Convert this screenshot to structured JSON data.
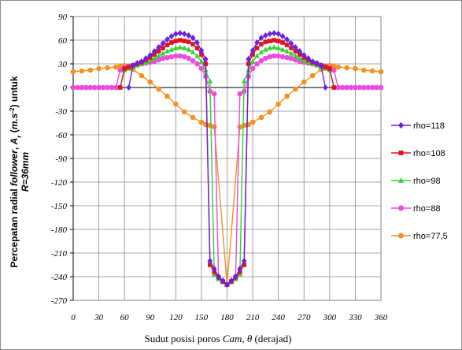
{
  "chart_data": {
    "type": "line",
    "title": "",
    "xlabel": {
      "prefix": "Sudut posisi poros ",
      "italic": "Cam",
      "sep": ", ",
      "theta": "θ",
      "suffix": " (derajad)"
    },
    "ylabel": {
      "line1_a": "Percepatan radial ",
      "line1_b": "follower",
      "line1_c": ", ",
      "line1_d": "A",
      "line1_e": "r",
      "line1_f": " (",
      "line1_g": "m.s",
      "line1_h": "-2",
      "line1_i": ") untuk",
      "line2": "R=36mm"
    },
    "xlim": [
      0,
      360
    ],
    "ylim": [
      -270,
      90
    ],
    "xticks": [
      0,
      30,
      60,
      90,
      120,
      150,
      180,
      210,
      240,
      270,
      300,
      330,
      360
    ],
    "yticks": [
      90,
      60,
      30,
      0,
      -30,
      -60,
      -90,
      -120,
      -150,
      -180,
      -210,
      -240,
      -270
    ],
    "grid": true,
    "legend_position": "right",
    "series": [
      {
        "name": "rho=118",
        "color": "#6a22e0",
        "marker": "diamond",
        "x": [
          65,
          70,
          75,
          80,
          85,
          90,
          95,
          100,
          105,
          110,
          115,
          120,
          125,
          130,
          135,
          140,
          145,
          150,
          155,
          160,
          165,
          170,
          175,
          180,
          185,
          190,
          195,
          200,
          205,
          210,
          215,
          220,
          225,
          230,
          235,
          240,
          245,
          250,
          255,
          260,
          265,
          270,
          275,
          280,
          285,
          290,
          295
        ],
        "y": [
          0,
          28,
          31,
          33,
          37,
          41,
          46,
          51,
          56,
          61,
          65,
          68,
          69,
          68,
          66,
          63,
          57,
          47,
          36,
          -220,
          -230,
          -240,
          -245,
          -250,
          -245,
          -240,
          -230,
          -220,
          36,
          47,
          57,
          63,
          66,
          68,
          69,
          68,
          65,
          61,
          56,
          51,
          46,
          41,
          37,
          33,
          31,
          28,
          0
        ]
      },
      {
        "name": "rho=108",
        "color": "#e0141e",
        "marker": "square",
        "x": [
          55,
          60,
          65,
          70,
          75,
          80,
          85,
          90,
          95,
          100,
          105,
          110,
          115,
          120,
          125,
          130,
          135,
          140,
          145,
          150,
          155,
          160,
          165,
          170,
          175,
          180,
          185,
          190,
          195,
          200,
          205,
          210,
          215,
          220,
          225,
          230,
          235,
          240,
          245,
          250,
          255,
          260,
          265,
          270,
          275,
          280,
          285,
          290,
          295,
          300,
          305
        ],
        "y": [
          0,
          24,
          26,
          28,
          30,
          32,
          35,
          38,
          42,
          46,
          50,
          54,
          57,
          59,
          60,
          59,
          58,
          55,
          50,
          42,
          30,
          -225,
          -234,
          -241,
          -246,
          -250,
          -246,
          -241,
          -234,
          -225,
          30,
          42,
          50,
          55,
          58,
          59,
          60,
          59,
          57,
          54,
          50,
          46,
          42,
          38,
          35,
          32,
          30,
          28,
          26,
          24,
          0
        ]
      },
      {
        "name": "rho=98",
        "color": "#2fd42f",
        "marker": "triangle",
        "x": [
          55,
          60,
          65,
          70,
          75,
          80,
          85,
          90,
          95,
          100,
          105,
          110,
          115,
          120,
          125,
          130,
          135,
          140,
          145,
          150,
          155,
          160,
          165,
          170,
          175,
          180,
          185,
          190,
          195,
          200,
          205,
          210,
          215,
          220,
          225,
          230,
          235,
          240,
          245,
          250,
          255,
          260,
          265,
          270,
          275,
          280,
          285,
          290,
          295,
          300,
          305
        ],
        "y": [
          0,
          22,
          24,
          26,
          28,
          30,
          32,
          34,
          37,
          40,
          43,
          46,
          48,
          50,
          51,
          50,
          48,
          45,
          40,
          33,
          22,
          8,
          -237,
          -243,
          -247,
          -250,
          -247,
          -243,
          -237,
          8,
          22,
          33,
          40,
          45,
          48,
          50,
          51,
          50,
          48,
          46,
          43,
          40,
          37,
          34,
          32,
          30,
          28,
          26,
          24,
          22,
          0
        ]
      },
      {
        "name": "rho=88",
        "color": "#ee4ae0",
        "marker": "circle",
        "x": [
          0,
          5,
          10,
          15,
          20,
          25,
          30,
          35,
          40,
          45,
          50,
          55,
          60,
          65,
          70,
          75,
          80,
          85,
          90,
          95,
          100,
          105,
          110,
          115,
          120,
          125,
          130,
          135,
          140,
          145,
          150,
          155,
          160,
          165,
          170,
          175,
          180,
          185,
          190,
          195,
          200,
          205,
          210,
          215,
          220,
          225,
          230,
          235,
          240,
          245,
          250,
          255,
          260,
          265,
          270,
          275,
          280,
          285,
          290,
          295,
          300,
          305,
          310,
          315,
          320,
          325,
          330,
          335,
          340,
          345,
          350,
          355,
          360
        ],
        "y": [
          0,
          0,
          0,
          0,
          0,
          0,
          0,
          0,
          0,
          0,
          0,
          22,
          25,
          27,
          28,
          29,
          30,
          31,
          32,
          33,
          35,
          37,
          38,
          39,
          40,
          40,
          39,
          37,
          34,
          30,
          24,
          14,
          -5,
          -8,
          -240,
          -246,
          -250,
          -246,
          -240,
          -8,
          -5,
          14,
          24,
          30,
          34,
          37,
          39,
          40,
          40,
          39,
          38,
          37,
          35,
          33,
          32,
          31,
          30,
          29,
          28,
          27,
          25,
          22,
          0,
          0,
          0,
          0,
          0,
          0,
          0,
          0,
          0,
          0,
          0
        ]
      },
      {
        "name": "rho=77,5",
        "color": "#f5911e",
        "marker": "circle",
        "x": [
          0,
          10,
          20,
          30,
          40,
          50,
          55,
          60,
          65,
          70,
          80,
          90,
          100,
          110,
          120,
          130,
          140,
          150,
          155,
          160,
          165,
          180,
          195,
          200,
          205,
          210,
          220,
          230,
          240,
          250,
          260,
          270,
          280,
          290,
          295,
          300,
          305,
          310,
          320,
          330,
          340,
          350,
          360
        ],
        "y": [
          20,
          21,
          22,
          24,
          25,
          26,
          27,
          28,
          26,
          23,
          15,
          7,
          -2,
          -11,
          -21,
          -31,
          -38,
          -44,
          -47,
          -48,
          -50,
          -250,
          -50,
          -48,
          -47,
          -44,
          -38,
          -31,
          -21,
          -11,
          -2,
          7,
          15,
          23,
          26,
          28,
          27,
          26,
          25,
          24,
          22,
          21,
          20
        ]
      }
    ]
  }
}
